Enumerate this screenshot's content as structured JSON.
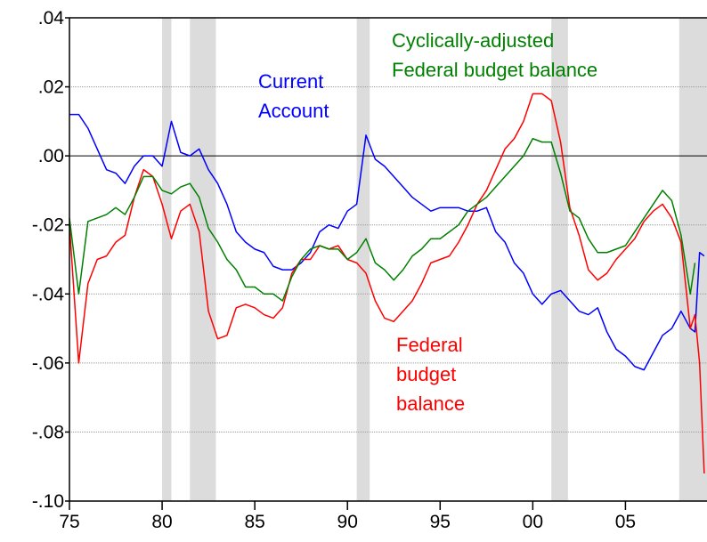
{
  "chart_data": {
    "type": "line",
    "x": [
      1975,
      1975.5,
      1976,
      1976.5,
      1977,
      1977.5,
      1978,
      1978.5,
      1979,
      1979.5,
      1980,
      1980.5,
      1981,
      1981.5,
      1982,
      1982.5,
      1983,
      1983.5,
      1984,
      1984.5,
      1985,
      1985.5,
      1986,
      1986.5,
      1987,
      1987.5,
      1988,
      1988.5,
      1989,
      1989.5,
      1990,
      1990.5,
      1991,
      1991.5,
      1992,
      1992.5,
      1993,
      1993.5,
      1994,
      1994.5,
      1995,
      1995.5,
      1996,
      1996.5,
      1997,
      1997.5,
      1998,
      1998.5,
      1999,
      1999.5,
      2000,
      2000.5,
      2001,
      2001.5,
      2002,
      2002.5,
      2003,
      2003.5,
      2004,
      2004.5,
      2005,
      2005.5,
      2006,
      2006.5,
      2007,
      2007.5,
      2008,
      2008.5,
      2008.75,
      2009,
      2009.25
    ],
    "series": [
      {
        "name": "Current Account",
        "color": "#0000ff",
        "values": [
          0.012,
          0.012,
          0.008,
          0.002,
          -0.004,
          -0.005,
          -0.008,
          -0.003,
          0,
          0,
          -0.003,
          0.01,
          0.001,
          0,
          0.002,
          -0.004,
          -0.008,
          -0.014,
          -0.022,
          -0.025,
          -0.027,
          -0.028,
          -0.032,
          -0.033,
          -0.033,
          -0.031,
          -0.028,
          -0.022,
          -0.02,
          -0.021,
          -0.016,
          -0.014,
          0.006,
          -0.001,
          -0.003,
          -0.006,
          -0.009,
          -0.012,
          -0.014,
          -0.016,
          -0.015,
          -0.015,
          -0.015,
          -0.016,
          -0.016,
          -0.015,
          -0.022,
          -0.025,
          -0.031,
          -0.034,
          -0.04,
          -0.043,
          -0.04,
          -0.039,
          -0.042,
          -0.045,
          -0.046,
          -0.044,
          -0.051,
          -0.056,
          -0.058,
          -0.061,
          -0.062,
          -0.057,
          -0.052,
          -0.05,
          -0.045,
          -0.05,
          -0.051,
          -0.028,
          -0.029
        ]
      },
      {
        "name": "Federal budget balance",
        "color": "#ff0000",
        "values": [
          -0.02,
          -0.06,
          -0.037,
          -0.03,
          -0.029,
          -0.025,
          -0.023,
          -0.012,
          -0.004,
          -0.006,
          -0.014,
          -0.024,
          -0.016,
          -0.014,
          -0.022,
          -0.045,
          -0.053,
          -0.052,
          -0.044,
          -0.043,
          -0.044,
          -0.046,
          -0.047,
          -0.044,
          -0.034,
          -0.03,
          -0.03,
          -0.026,
          -0.027,
          -0.026,
          -0.03,
          -0.031,
          -0.034,
          -0.042,
          -0.047,
          -0.048,
          -0.045,
          -0.042,
          -0.037,
          -0.031,
          -0.03,
          -0.029,
          -0.025,
          -0.02,
          -0.014,
          -0.01,
          -0.004,
          0.002,
          0.005,
          0.01,
          0.018,
          0.018,
          0.016,
          0.004,
          -0.015,
          -0.023,
          -0.033,
          -0.036,
          -0.034,
          -0.03,
          -0.027,
          -0.024,
          -0.019,
          -0.016,
          -0.014,
          -0.018,
          -0.025,
          -0.05,
          -0.046,
          -0.06,
          -0.092
        ]
      },
      {
        "name": "Cyclically-adjusted Federal budget balance",
        "color": "#008000",
        "values": [
          -0.018,
          -0.04,
          -0.019,
          -0.018,
          -0.017,
          -0.015,
          -0.017,
          -0.012,
          -0.006,
          -0.006,
          -0.01,
          -0.011,
          -0.009,
          -0.008,
          -0.012,
          -0.021,
          -0.025,
          -0.03,
          -0.033,
          -0.038,
          -0.038,
          -0.04,
          -0.04,
          -0.042,
          -0.035,
          -0.03,
          -0.027,
          -0.026,
          -0.027,
          -0.027,
          -0.03,
          -0.028,
          -0.024,
          -0.031,
          -0.033,
          -0.036,
          -0.033,
          -0.029,
          -0.027,
          -0.024,
          -0.024,
          -0.022,
          -0.02,
          -0.016,
          -0.014,
          -0.012,
          -0.009,
          -0.006,
          -0.003,
          0,
          0.005,
          0.004,
          0.004,
          -0.005,
          -0.016,
          -0.018,
          -0.024,
          -0.028,
          -0.028,
          -0.027,
          -0.026,
          -0.022,
          -0.018,
          -0.014,
          -0.01,
          -0.013,
          -0.023,
          -0.04,
          -0.031,
          null,
          null
        ]
      }
    ],
    "annotations": [
      {
        "lines": [
          "Current",
          "Account"
        ],
        "color": "#0000ff"
      },
      {
        "lines": [
          "Cyclically-adjusted",
          "Federal budget balance"
        ],
        "color": "#008000"
      },
      {
        "lines": [
          "Federal",
          "budget",
          "balance"
        ],
        "color": "#ff0000"
      }
    ],
    "shaded_periods": [
      [
        1980,
        1980.5
      ],
      [
        1981.5,
        1982.9
      ],
      [
        1990.5,
        1991.2
      ],
      [
        2001,
        2001.9
      ],
      [
        2007.9,
        2009.4
      ]
    ],
    "shade_color": "#dcdcdc",
    "xlim": [
      1975,
      2009.4
    ],
    "ylim": [
      -0.1,
      0.04
    ],
    "xticks": [
      {
        "value": 1975,
        "label": "75"
      },
      {
        "value": 1980,
        "label": "80"
      },
      {
        "value": 1985,
        "label": "85"
      },
      {
        "value": 1990,
        "label": "90"
      },
      {
        "value": 1995,
        "label": "95"
      },
      {
        "value": 2000,
        "label": "00"
      },
      {
        "value": 2005,
        "label": "05"
      }
    ],
    "yticks": [
      {
        "value": -0.1,
        "label": "-.10"
      },
      {
        "value": -0.08,
        "label": "-.08"
      },
      {
        "value": -0.06,
        "label": "-.06"
      },
      {
        "value": -0.04,
        "label": "-.04"
      },
      {
        "value": -0.02,
        "label": "-.02"
      },
      {
        "value": 0,
        "label": ".00"
      },
      {
        "value": 0.02,
        "label": ".02"
      },
      {
        "value": 0.04,
        "label": ".04"
      }
    ],
    "grid": true
  }
}
